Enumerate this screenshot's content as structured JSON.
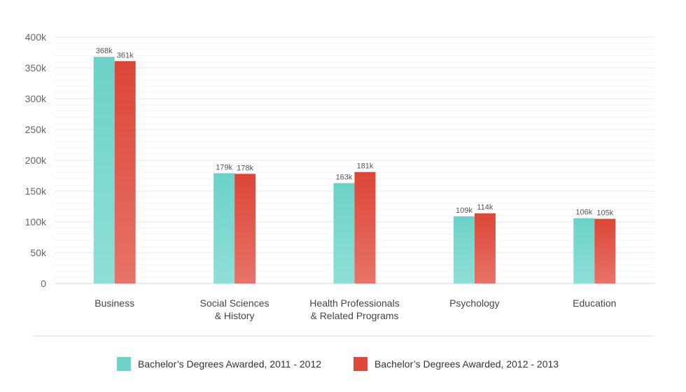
{
  "chart_data": {
    "type": "bar",
    "categories": [
      [
        "Business"
      ],
      [
        "Social Sciences",
        "& History"
      ],
      [
        "Health Professionals",
        "& Related Programs"
      ],
      [
        "Psychology"
      ],
      [
        "Education"
      ]
    ],
    "series": [
      {
        "name": "Bachelor’s Degrees Awarded, 2011 - 2012",
        "values": [
          368,
          179,
          163,
          109,
          106
        ],
        "labels": [
          "368k",
          "179k",
          "163k",
          "109k",
          "106k"
        ],
        "color": "#6fd3c9"
      },
      {
        "name": "Bachelor’s Degrees Awarded, 2012 - 2013",
        "values": [
          361,
          178,
          181,
          114,
          105
        ],
        "labels": [
          "361k",
          "178k",
          "181k",
          "114k",
          "105k"
        ],
        "color": "#dd4a3a"
      }
    ],
    "ylim": [
      0,
      400
    ],
    "yticks": [
      0,
      50,
      100,
      150,
      200,
      250,
      300,
      350,
      400
    ],
    "ytick_labels": [
      "0",
      "50k",
      "100k",
      "150k",
      "200k",
      "250k",
      "300k",
      "350k",
      "400k"
    ],
    "grid": true,
    "legend_position": "bottom"
  }
}
